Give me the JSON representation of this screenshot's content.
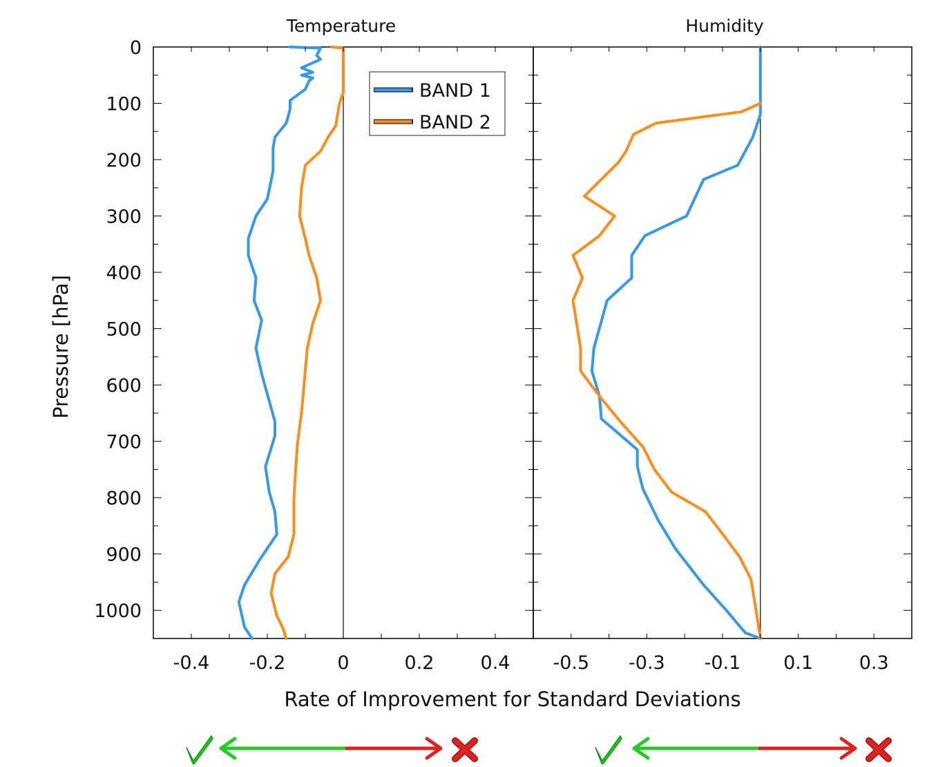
{
  "chart_data": [
    {
      "type": "line",
      "title": "Temperature",
      "xlim": [
        -0.5,
        0.5
      ],
      "ylim": [
        1050,
        0
      ],
      "xticks": [
        -0.4,
        -0.2,
        0,
        0.2,
        0.4
      ],
      "xtick_labels": [
        "-0.4",
        "-0.2",
        "0",
        "0.2",
        "0.4"
      ],
      "yticks": [
        0,
        100,
        200,
        300,
        400,
        500,
        600,
        700,
        800,
        900,
        1000
      ],
      "ytick_labels": [
        "0",
        "100",
        "200",
        "300",
        "400",
        "500",
        "600",
        "700",
        "800",
        "900",
        "1000"
      ],
      "reference_line_x": 0,
      "legend_position": "top-right",
      "series": [
        {
          "name": "BAND 1",
          "color": "#3399ee",
          "points": [
            [
              -0.14,
              0
            ],
            [
              -0.06,
              2
            ],
            [
              -0.07,
              15
            ],
            [
              -0.06,
              22
            ],
            [
              -0.11,
              37
            ],
            [
              -0.08,
              45
            ],
            [
              -0.11,
              50
            ],
            [
              -0.08,
              55
            ],
            [
              -0.09,
              60
            ],
            [
              -0.1,
              75
            ],
            [
              -0.12,
              85
            ],
            [
              -0.14,
              95
            ],
            [
              -0.14,
              110
            ],
            [
              -0.15,
              135
            ],
            [
              -0.18,
              160
            ],
            [
              -0.185,
              180
            ],
            [
              -0.185,
              220
            ],
            [
              -0.2,
              270
            ],
            [
              -0.23,
              300
            ],
            [
              -0.25,
              340
            ],
            [
              -0.25,
              370
            ],
            [
              -0.23,
              410
            ],
            [
              -0.235,
              450
            ],
            [
              -0.215,
              485
            ],
            [
              -0.23,
              535
            ],
            [
              -0.215,
              580
            ],
            [
              -0.18,
              665
            ],
            [
              -0.18,
              690
            ],
            [
              -0.205,
              745
            ],
            [
              -0.195,
              790
            ],
            [
              -0.18,
              825
            ],
            [
              -0.175,
              865
            ],
            [
              -0.22,
              910
            ],
            [
              -0.26,
              955
            ],
            [
              -0.275,
              985
            ],
            [
              -0.26,
              1030
            ],
            [
              -0.24,
              1050
            ]
          ]
        },
        {
          "name": "BAND 2",
          "color": "#ff8c1a",
          "points": [
            [
              -0.03,
              0
            ],
            [
              0.0,
              2
            ],
            [
              0.0,
              80
            ],
            [
              -0.01,
              100
            ],
            [
              -0.02,
              140
            ],
            [
              -0.04,
              160
            ],
            [
              -0.06,
              185
            ],
            [
              -0.1,
              210
            ],
            [
              -0.11,
              250
            ],
            [
              -0.115,
              300
            ],
            [
              -0.1,
              340
            ],
            [
              -0.09,
              370
            ],
            [
              -0.07,
              410
            ],
            [
              -0.06,
              450
            ],
            [
              -0.08,
              490
            ],
            [
              -0.095,
              535
            ],
            [
              -0.11,
              650
            ],
            [
              -0.12,
              700
            ],
            [
              -0.125,
              745
            ],
            [
              -0.13,
              800
            ],
            [
              -0.13,
              865
            ],
            [
              -0.145,
              905
            ],
            [
              -0.18,
              935
            ],
            [
              -0.19,
              970
            ],
            [
              -0.175,
              1010
            ],
            [
              -0.16,
              1030
            ],
            [
              -0.15,
              1050
            ]
          ]
        }
      ]
    },
    {
      "type": "line",
      "title": "Humidity",
      "xlim": [
        -0.6,
        0.4
      ],
      "ylim": [
        1050,
        0
      ],
      "xticks": [
        -0.5,
        -0.3,
        -0.1,
        0.1,
        0.3
      ],
      "xtick_labels": [
        "-0.5",
        "-0.3",
        "-0.1",
        "0.1",
        "0.3"
      ],
      "yticks": [
        0,
        100,
        200,
        300,
        400,
        500,
        600,
        700,
        800,
        900,
        1000
      ],
      "reference_line_x": 0,
      "series": [
        {
          "name": "BAND 1",
          "color": "#3399ee",
          "points": [
            [
              0.0,
              0
            ],
            [
              0.0,
              120
            ],
            [
              -0.02,
              160
            ],
            [
              -0.06,
              210
            ],
            [
              -0.15,
              235
            ],
            [
              -0.195,
              300
            ],
            [
              -0.305,
              335
            ],
            [
              -0.34,
              370
            ],
            [
              -0.34,
              410
            ],
            [
              -0.405,
              450
            ],
            [
              -0.44,
              535
            ],
            [
              -0.445,
              575
            ],
            [
              -0.425,
              620
            ],
            [
              -0.42,
              660
            ],
            [
              -0.325,
              715
            ],
            [
              -0.325,
              745
            ],
            [
              -0.31,
              785
            ],
            [
              -0.27,
              840
            ],
            [
              -0.225,
              890
            ],
            [
              -0.15,
              955
            ],
            [
              -0.09,
              1000
            ],
            [
              -0.04,
              1040
            ],
            [
              0.0,
              1050
            ]
          ]
        },
        {
          "name": "BAND 2",
          "color": "#ff8c1a",
          "points": [
            [
              0.0,
              100
            ],
            [
              -0.05,
              115
            ],
            [
              -0.275,
              135
            ],
            [
              -0.335,
              155
            ],
            [
              -0.355,
              185
            ],
            [
              -0.375,
              205
            ],
            [
              -0.465,
              265
            ],
            [
              -0.385,
              300
            ],
            [
              -0.425,
              335
            ],
            [
              -0.495,
              370
            ],
            [
              -0.47,
              410
            ],
            [
              -0.495,
              450
            ],
            [
              -0.475,
              535
            ],
            [
              -0.475,
              575
            ],
            [
              -0.425,
              620
            ],
            [
              -0.37,
              665
            ],
            [
              -0.31,
              710
            ],
            [
              -0.28,
              750
            ],
            [
              -0.235,
              790
            ],
            [
              -0.145,
              825
            ],
            [
              -0.105,
              860
            ],
            [
              -0.055,
              905
            ],
            [
              -0.025,
              945
            ],
            [
              -0.015,
              985
            ],
            [
              0.0,
              1050
            ]
          ]
        }
      ]
    }
  ],
  "labels": {
    "ylabel": "Pressure [hPa]",
    "xlabel": "Rate of Improvement for Standard Deviations",
    "title_left": "Temperature",
    "title_right": "Humidity",
    "legend_band1": "BAND 1",
    "legend_band2": "BAND 2"
  },
  "colors": {
    "band1": "#3399ee",
    "band2": "#ff8c1a",
    "good": "#22cc22",
    "bad": "#dd2222",
    "axis": "#000000"
  },
  "indicators": {
    "good_icon": "checkmark-icon",
    "bad_icon": "cross-icon"
  }
}
